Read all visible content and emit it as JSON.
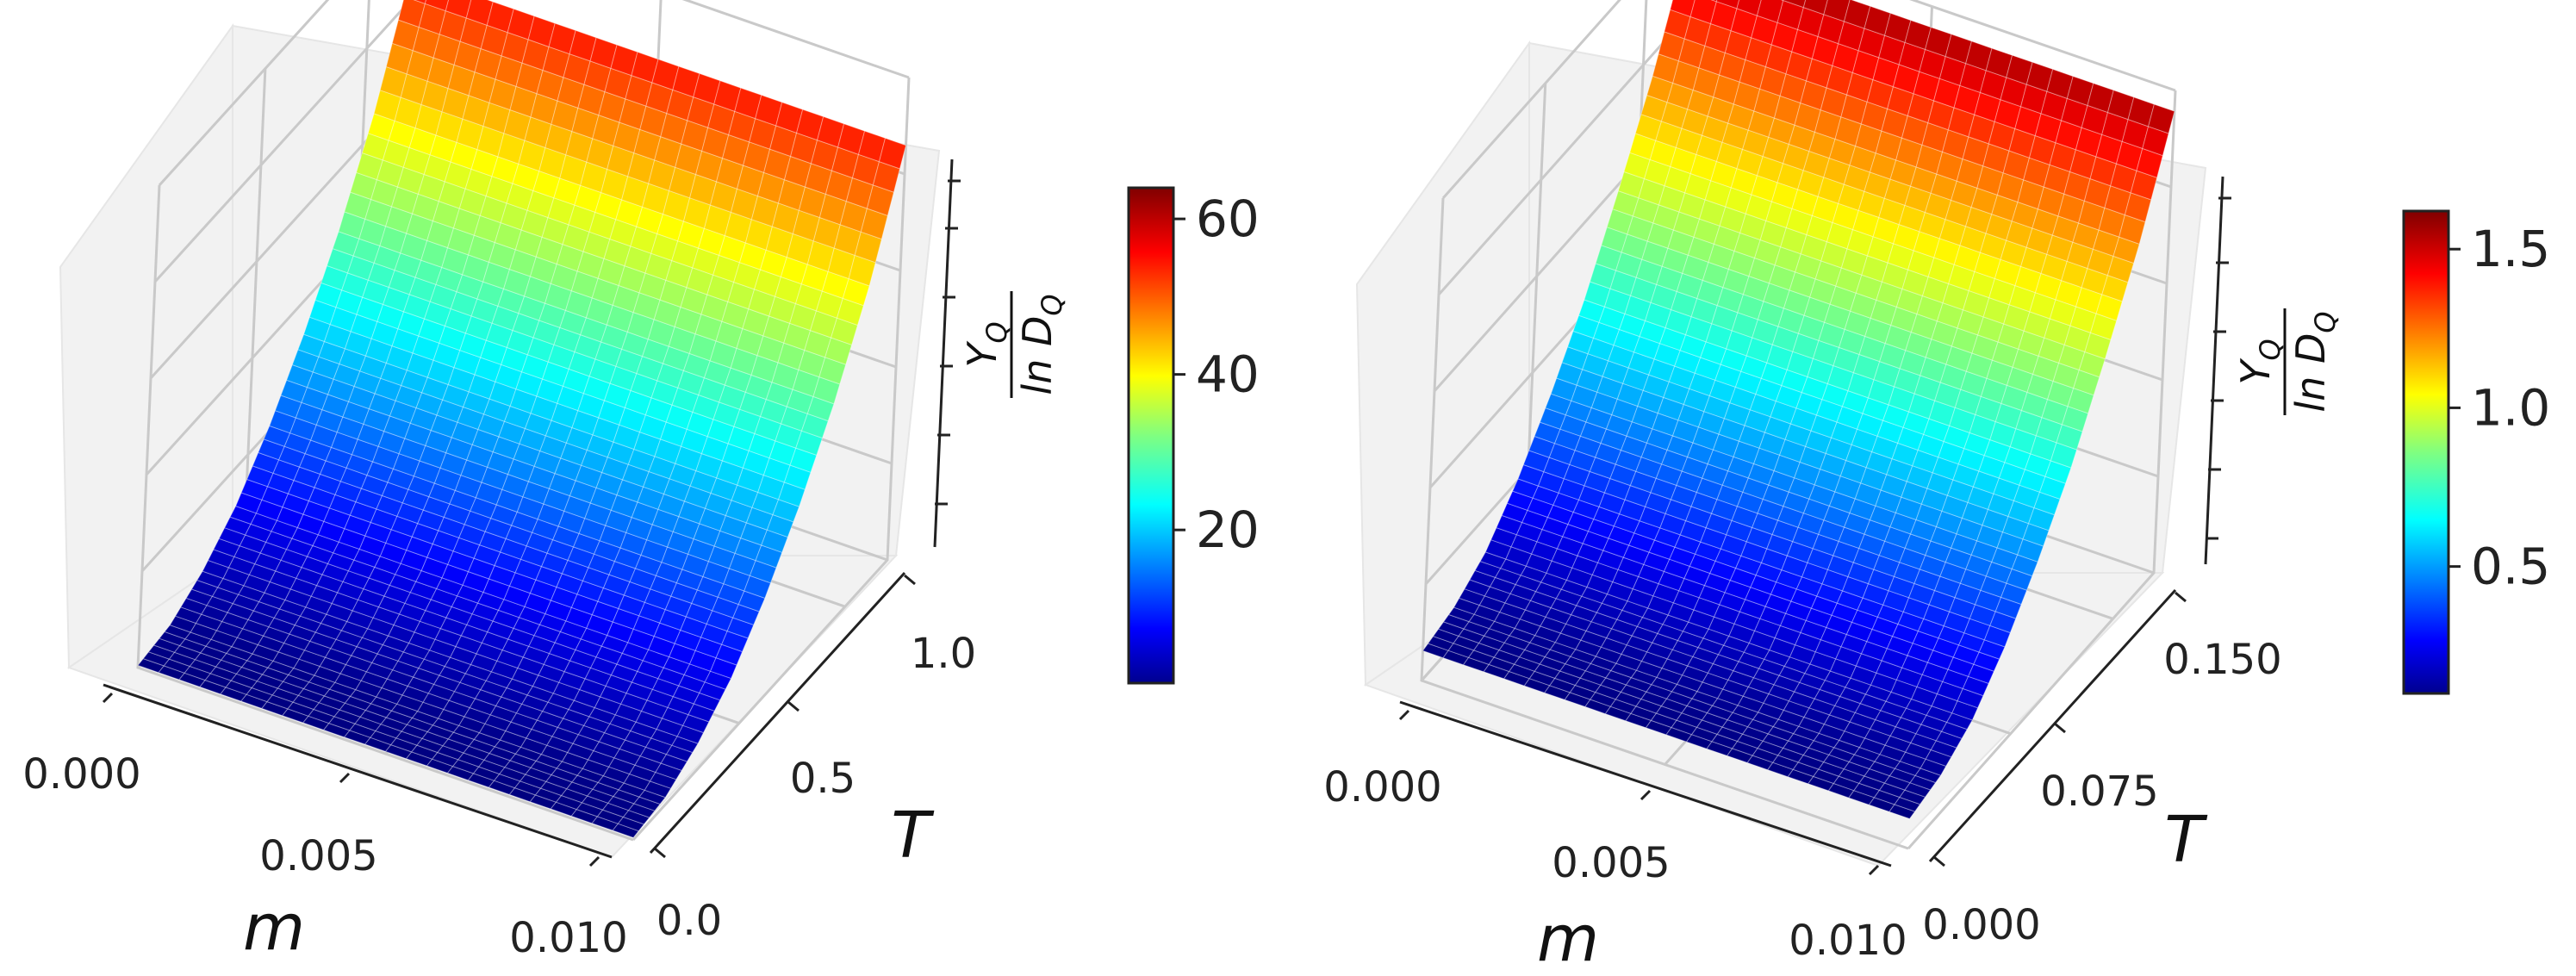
{
  "figure_title": "",
  "chart_data": [
    {
      "type": "surface3d",
      "title": "",
      "xlabel": "m",
      "ylabel": "T",
      "zlabel": "Y_Q / ln D_Q",
      "z_label_numerator": "Y",
      "z_label_subscript": "Q",
      "z_label_denominator": "ln D",
      "x_ticks": [
        "0.000",
        "0.005",
        "0.010"
      ],
      "x_tick_values": [
        0.0,
        0.005,
        0.01
      ],
      "y_ticks": [
        "0.0",
        "0.5",
        "1.0"
      ],
      "y_tick_values": [
        0.0,
        0.5,
        1.0
      ],
      "xlim": [
        0.0,
        0.01
      ],
      "ylim": [
        0.0,
        1.2
      ],
      "zlim": [
        0.0,
        64.0
      ],
      "surface": {
        "t_max": 1.2,
        "z_at_t": [
          [
            0.0,
            0.3
          ],
          [
            0.15,
            1.0
          ],
          [
            0.3,
            3.5
          ],
          [
            0.45,
            7.5
          ],
          [
            0.6,
            13.5
          ],
          [
            0.75,
            21.0
          ],
          [
            0.9,
            30.0
          ],
          [
            1.05,
            41.0
          ],
          [
            1.2,
            55.0
          ]
        ],
        "depends_on_m": false
      },
      "colorbar": {
        "colormap": "jet",
        "min": 0.3,
        "max": 64.0,
        "ticks": [
          "20",
          "40",
          "60"
        ],
        "tick_values": [
          20,
          40,
          60
        ]
      }
    },
    {
      "type": "surface3d",
      "title": "",
      "xlabel": "m",
      "ylabel": "T",
      "zlabel": "Y_Q / ln D_Q",
      "z_label_numerator": "Y",
      "z_label_subscript": "Q",
      "z_label_denominator": "ln D",
      "x_ticks": [
        "0.000",
        "0.005",
        "0.010"
      ],
      "x_tick_values": [
        0.0,
        0.005,
        0.01
      ],
      "y_ticks": [
        "0.000",
        "0.075",
        "0.150"
      ],
      "y_tick_values": [
        0.0,
        0.075,
        0.15
      ],
      "xlim": [
        0.0,
        0.01
      ],
      "ylim": [
        0.0,
        0.18
      ],
      "zlim": [
        0.0,
        1.62
      ],
      "surface": {
        "t_max": 0.18,
        "z_at_t": [
          [
            0.0,
            0.1
          ],
          [
            0.0225,
            0.13
          ],
          [
            0.045,
            0.2
          ],
          [
            0.0675,
            0.33
          ],
          [
            0.09,
            0.5
          ],
          [
            0.1125,
            0.7
          ],
          [
            0.135,
            0.95
          ],
          [
            0.1575,
            1.22
          ],
          [
            0.18,
            1.55
          ]
        ],
        "depends_on_m": false
      },
      "colorbar": {
        "colormap": "jet",
        "min": 0.1,
        "max": 1.62,
        "ticks": [
          "0.5",
          "1.0",
          "1.5"
        ],
        "tick_values": [
          0.5,
          1.0,
          1.5
        ]
      }
    }
  ]
}
